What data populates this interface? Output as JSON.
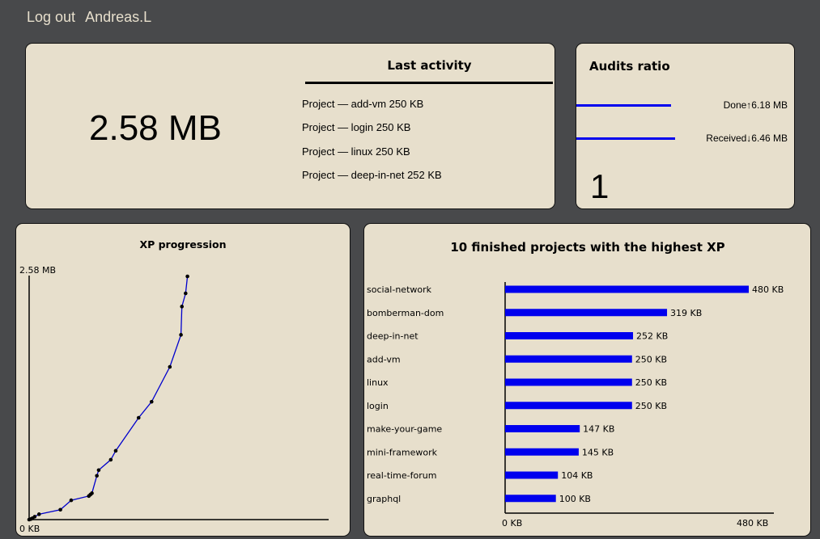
{
  "header": {
    "logout_label": "Log out",
    "username": "Andreas.L"
  },
  "xp_card": {
    "total": "2.58 MB",
    "last_activity_title": "Last activity",
    "activities": [
      "Project — add-vm 250 KB",
      "Project — login 250 KB",
      "Project — linux 250 KB",
      "Project — deep-in-net 252 KB"
    ]
  },
  "audits": {
    "title": "Audits ratio",
    "done_label": "Done↑6.18 MB",
    "received_label": "Received↓6.46 MB",
    "done_value_mb": 6.18,
    "received_value_mb": 6.46,
    "ratio": "1",
    "bar_color": "#0000ee"
  },
  "chart_data": [
    {
      "type": "line",
      "title": "XP progression",
      "y_top_label": "2.58 MB",
      "y_bottom_label": "0 KB",
      "ylim_kb": [
        0,
        2580
      ],
      "color": "#0000cc",
      "points": [
        [
          0.0,
          0
        ],
        [
          0.006,
          6
        ],
        [
          0.011,
          15
        ],
        [
          0.018,
          31
        ],
        [
          0.032,
          57
        ],
        [
          0.101,
          105
        ],
        [
          0.136,
          205
        ],
        [
          0.193,
          250
        ],
        [
          0.198,
          265
        ],
        [
          0.203,
          280
        ],
        [
          0.219,
          465
        ],
        [
          0.225,
          525
        ],
        [
          0.264,
          635
        ],
        [
          0.28,
          730
        ],
        [
          0.354,
          1080
        ],
        [
          0.396,
          1250
        ],
        [
          0.455,
          1620
        ],
        [
          0.491,
          1960
        ],
        [
          0.494,
          2260
        ],
        [
          0.506,
          2400
        ],
        [
          0.512,
          2580
        ]
      ]
    },
    {
      "type": "bar",
      "orientation": "horizontal",
      "title": "10 finished projects with the highest XP",
      "color": "#0000ee",
      "xlim_kb": [
        0,
        480
      ],
      "x_tick_labels": [
        "0 KB",
        "480 KB"
      ],
      "categories": [
        "social-network",
        "bomberman-dom",
        "deep-in-net",
        "add-vm",
        "linux",
        "login",
        "make-your-game",
        "mini-framework",
        "real-time-forum",
        "graphql"
      ],
      "values": [
        480,
        319,
        252,
        250,
        250,
        250,
        147,
        145,
        104,
        100
      ],
      "value_labels": [
        "480 KB",
        "319 KB",
        "252 KB",
        "250 KB",
        "250 KB",
        "250 KB",
        "147 KB",
        "145 KB",
        "104 KB",
        "100 KB"
      ]
    }
  ]
}
